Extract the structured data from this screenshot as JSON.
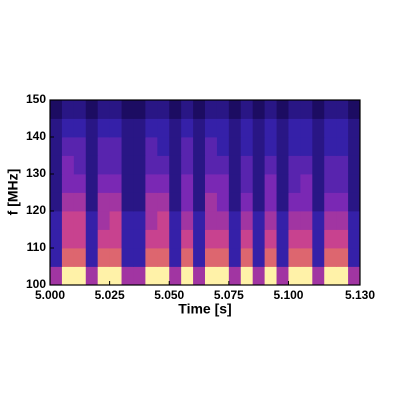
{
  "chart_data": {
    "type": "spectrogram",
    "xlabel": "Time [s]",
    "ylabel": "f [MHz]",
    "xlim": [
      5.0,
      5.13
    ],
    "ylim": [
      100,
      150
    ],
    "xticks": [
      {
        "value": 5.0,
        "label": "5.000"
      },
      5.025,
      {
        "value": 5.05,
        "label": "5.050"
      },
      5.075,
      {
        "value": 5.1,
        "label": "5.100"
      },
      {
        "value": 5.13,
        "label": "5.130"
      }
    ],
    "yticks": [
      100,
      110,
      120,
      130,
      140,
      150
    ],
    "xbins": [
      5.0,
      5.005,
      5.01,
      5.015,
      5.02,
      5.025,
      5.03,
      5.035,
      5.04,
      5.045,
      5.05,
      5.055,
      5.06,
      5.065,
      5.07,
      5.075,
      5.08,
      5.085,
      5.09,
      5.095,
      5.1,
      5.105,
      5.11,
      5.115,
      5.12,
      5.125,
      5.13
    ],
    "ybins": [
      100,
      105,
      110,
      115,
      120,
      125,
      130,
      135,
      140,
      145,
      150
    ],
    "zlim": [
      0,
      10
    ],
    "colormap": [
      "#1c0c62",
      "#3520a8",
      "#7a28b4",
      "#c8428f",
      "#f2894f",
      "#fff2a8"
    ],
    "z": [
      [
        5,
        10,
        10,
        5,
        10,
        10,
        5,
        5,
        10,
        10,
        5,
        10,
        5,
        10,
        10,
        5,
        10,
        5,
        10,
        5,
        10,
        10,
        5,
        10,
        10,
        5
      ],
      [
        2,
        7,
        7,
        2,
        7,
        7,
        2,
        2,
        7,
        7,
        2,
        7,
        2,
        7,
        7,
        2,
        7,
        2,
        7,
        2,
        7,
        7,
        2,
        7,
        7,
        2
      ],
      [
        2,
        6,
        6,
        2,
        6,
        6,
        2,
        2,
        6,
        6,
        2,
        6,
        2,
        6,
        6,
        2,
        6,
        2,
        6,
        2,
        6,
        6,
        2,
        6,
        6,
        2
      ],
      [
        2,
        6,
        6,
        2,
        5,
        6,
        2,
        2,
        5,
        6,
        2,
        5,
        2,
        5,
        5,
        2,
        5,
        2,
        5,
        2,
        5,
        5,
        2,
        5,
        5,
        2
      ],
      [
        1,
        5,
        5,
        1,
        5,
        5,
        1,
        1,
        5,
        5,
        1,
        4,
        1,
        5,
        4,
        1,
        4,
        1,
        4,
        1,
        4,
        4,
        1,
        4,
        4,
        1
      ],
      [
        1,
        4,
        4,
        1,
        4,
        4,
        1,
        1,
        4,
        4,
        1,
        4,
        1,
        4,
        4,
        1,
        3,
        1,
        4,
        1,
        3,
        4,
        1,
        3,
        3,
        1
      ],
      [
        1,
        4,
        3,
        1,
        3,
        3,
        1,
        1,
        3,
        3,
        1,
        3,
        1,
        3,
        3,
        1,
        3,
        1,
        3,
        1,
        3,
        3,
        1,
        3,
        3,
        1
      ],
      [
        1,
        3,
        3,
        1,
        3,
        3,
        1,
        1,
        3,
        2,
        1,
        3,
        1,
        3,
        2,
        1,
        2,
        1,
        2,
        1,
        2,
        2,
        1,
        2,
        2,
        1
      ],
      [
        1,
        2,
        2,
        1,
        2,
        2,
        1,
        1,
        2,
        2,
        1,
        2,
        1,
        2,
        2,
        1,
        2,
        1,
        2,
        1,
        2,
        2,
        1,
        2,
        2,
        1
      ],
      [
        0,
        1,
        1,
        0,
        1,
        1,
        0,
        0,
        1,
        1,
        0,
        1,
        0,
        1,
        1,
        0,
        1,
        0,
        1,
        0,
        1,
        1,
        0,
        1,
        1,
        0
      ]
    ]
  }
}
